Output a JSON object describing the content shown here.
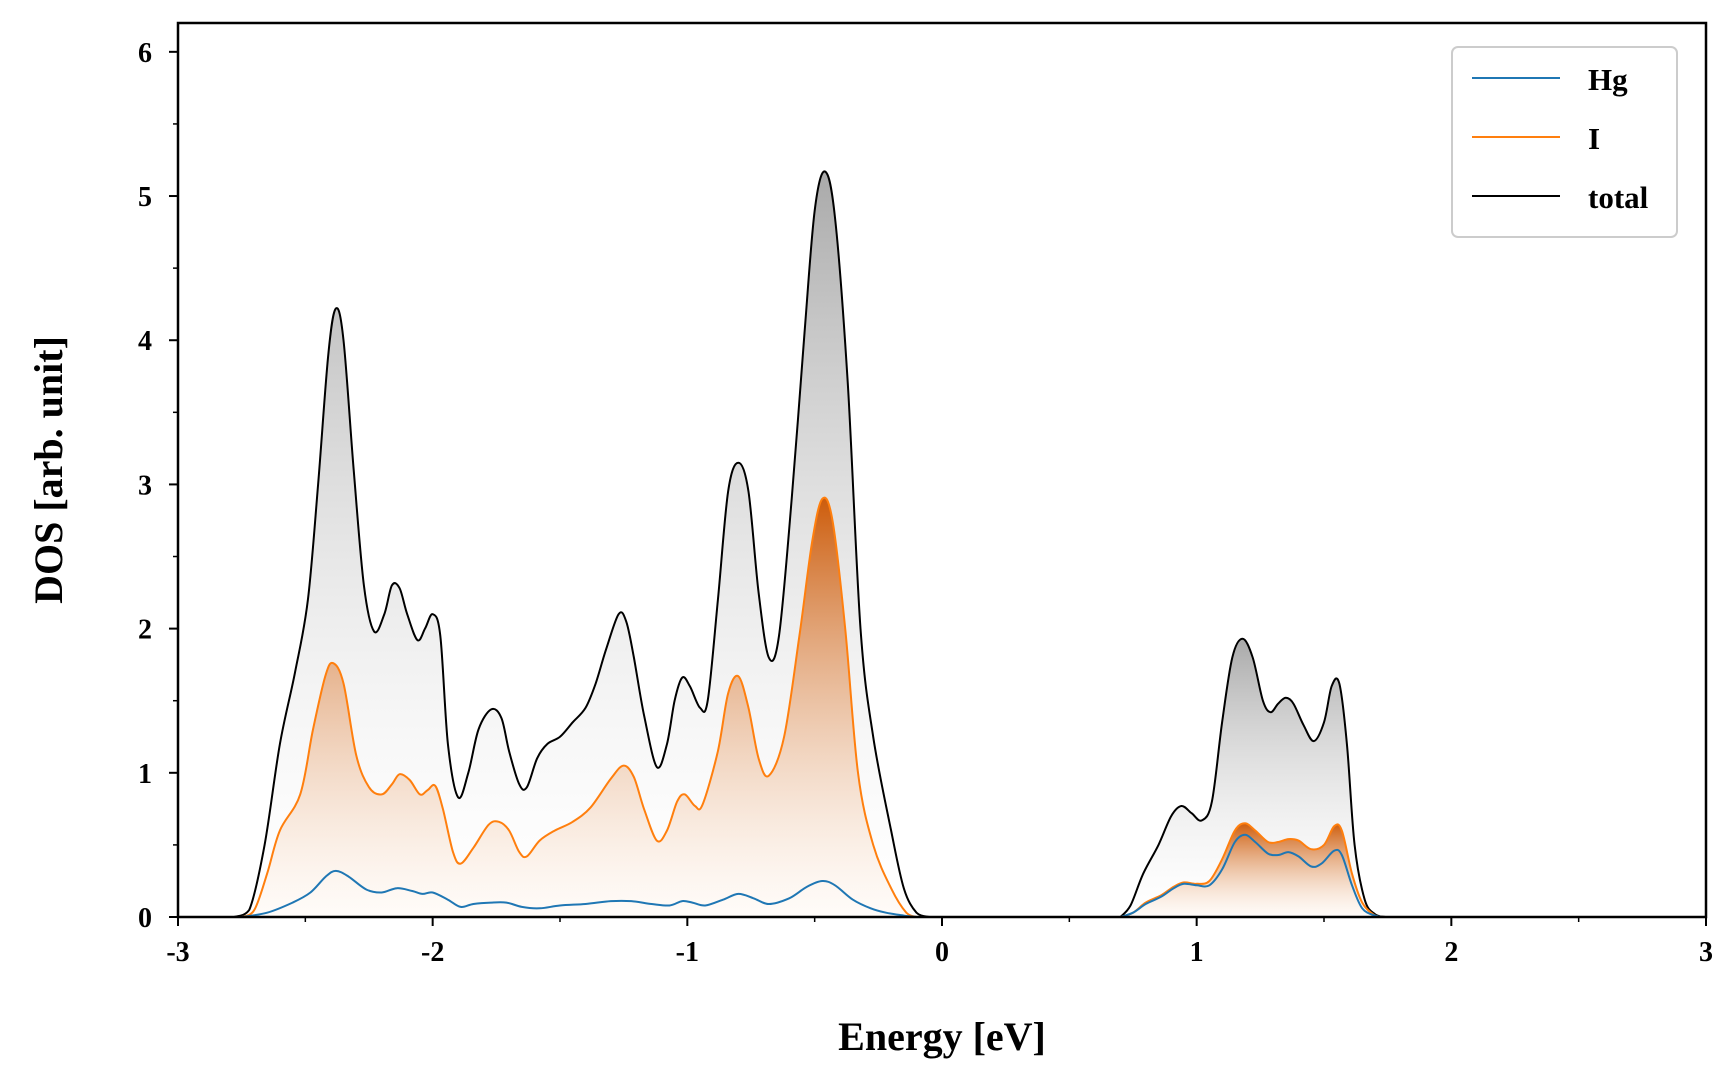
{
  "chart_data": {
    "type": "area",
    "title": "",
    "xlabel": "Energy [eV]",
    "ylabel": "DOS [arb. unit]",
    "xlim": [
      -3,
      3
    ],
    "ylim": [
      0,
      6.2
    ],
    "x_ticks": [
      -3,
      -2,
      -1,
      0,
      1,
      2,
      3
    ],
    "x_tick_labels": [
      "-3",
      "-2",
      "-1",
      "0",
      "1",
      "2",
      "3"
    ],
    "y_ticks": [
      0,
      1,
      2,
      3,
      4,
      5,
      6
    ],
    "y_tick_labels": [
      "0",
      "1",
      "2",
      "3",
      "4",
      "5",
      "6"
    ],
    "grid": false,
    "legend": {
      "position": "top-right",
      "entries": [
        "Hg",
        "I",
        "total"
      ]
    },
    "series": [
      {
        "name": "Hg",
        "color": "#1f77b4",
        "fill": false,
        "points": [
          [
            -2.75,
            0
          ],
          [
            -2.65,
            0.03
          ],
          [
            -2.55,
            0.1
          ],
          [
            -2.48,
            0.17
          ],
          [
            -2.42,
            0.28
          ],
          [
            -2.38,
            0.32
          ],
          [
            -2.33,
            0.28
          ],
          [
            -2.26,
            0.19
          ],
          [
            -2.2,
            0.17
          ],
          [
            -2.14,
            0.2
          ],
          [
            -2.08,
            0.18
          ],
          [
            -2.04,
            0.16
          ],
          [
            -2.0,
            0.17
          ],
          [
            -1.94,
            0.12
          ],
          [
            -1.89,
            0.07
          ],
          [
            -1.84,
            0.09
          ],
          [
            -1.77,
            0.1
          ],
          [
            -1.71,
            0.1
          ],
          [
            -1.65,
            0.07
          ],
          [
            -1.58,
            0.06
          ],
          [
            -1.5,
            0.08
          ],
          [
            -1.4,
            0.09
          ],
          [
            -1.3,
            0.11
          ],
          [
            -1.22,
            0.11
          ],
          [
            -1.14,
            0.09
          ],
          [
            -1.07,
            0.08
          ],
          [
            -1.02,
            0.11
          ],
          [
            -0.98,
            0.1
          ],
          [
            -0.93,
            0.08
          ],
          [
            -0.86,
            0.12
          ],
          [
            -0.8,
            0.16
          ],
          [
            -0.74,
            0.13
          ],
          [
            -0.68,
            0.09
          ],
          [
            -0.6,
            0.13
          ],
          [
            -0.53,
            0.21
          ],
          [
            -0.47,
            0.25
          ],
          [
            -0.42,
            0.22
          ],
          [
            -0.35,
            0.12
          ],
          [
            -0.28,
            0.06
          ],
          [
            -0.22,
            0.03
          ],
          [
            -0.15,
            0.01
          ],
          [
            -0.1,
            0
          ],
          [
            0.7,
            0
          ],
          [
            0.75,
            0.03
          ],
          [
            0.8,
            0.09
          ],
          [
            0.86,
            0.14
          ],
          [
            0.91,
            0.2
          ],
          [
            0.95,
            0.23
          ],
          [
            1.0,
            0.22
          ],
          [
            1.05,
            0.22
          ],
          [
            1.1,
            0.33
          ],
          [
            1.15,
            0.52
          ],
          [
            1.19,
            0.57
          ],
          [
            1.23,
            0.52
          ],
          [
            1.28,
            0.44
          ],
          [
            1.32,
            0.43
          ],
          [
            1.36,
            0.45
          ],
          [
            1.4,
            0.42
          ],
          [
            1.45,
            0.35
          ],
          [
            1.49,
            0.37
          ],
          [
            1.54,
            0.46
          ],
          [
            1.57,
            0.43
          ],
          [
            1.61,
            0.22
          ],
          [
            1.65,
            0.06
          ],
          [
            1.7,
            0.01
          ],
          [
            1.73,
            0
          ]
        ]
      },
      {
        "name": "I",
        "color": "#ff7f0e",
        "fill": true,
        "points": [
          [
            -2.75,
            0
          ],
          [
            -2.7,
            0.05
          ],
          [
            -2.65,
            0.3
          ],
          [
            -2.6,
            0.6
          ],
          [
            -2.52,
            0.85
          ],
          [
            -2.47,
            1.3
          ],
          [
            -2.42,
            1.68
          ],
          [
            -2.39,
            1.76
          ],
          [
            -2.35,
            1.62
          ],
          [
            -2.3,
            1.12
          ],
          [
            -2.25,
            0.9
          ],
          [
            -2.2,
            0.85
          ],
          [
            -2.16,
            0.92
          ],
          [
            -2.13,
            0.99
          ],
          [
            -2.09,
            0.95
          ],
          [
            -2.05,
            0.85
          ],
          [
            -2.02,
            0.88
          ],
          [
            -1.99,
            0.91
          ],
          [
            -1.96,
            0.75
          ],
          [
            -1.92,
            0.45
          ],
          [
            -1.89,
            0.37
          ],
          [
            -1.84,
            0.48
          ],
          [
            -1.78,
            0.64
          ],
          [
            -1.74,
            0.66
          ],
          [
            -1.7,
            0.6
          ],
          [
            -1.66,
            0.45
          ],
          [
            -1.63,
            0.42
          ],
          [
            -1.58,
            0.53
          ],
          [
            -1.52,
            0.6
          ],
          [
            -1.45,
            0.66
          ],
          [
            -1.38,
            0.76
          ],
          [
            -1.3,
            0.96
          ],
          [
            -1.25,
            1.05
          ],
          [
            -1.21,
            0.97
          ],
          [
            -1.17,
            0.75
          ],
          [
            -1.12,
            0.53
          ],
          [
            -1.08,
            0.6
          ],
          [
            -1.04,
            0.8
          ],
          [
            -1.01,
            0.85
          ],
          [
            -0.97,
            0.77
          ],
          [
            -0.94,
            0.78
          ],
          [
            -0.88,
            1.15
          ],
          [
            -0.84,
            1.55
          ],
          [
            -0.8,
            1.67
          ],
          [
            -0.76,
            1.45
          ],
          [
            -0.72,
            1.1
          ],
          [
            -0.68,
            0.98
          ],
          [
            -0.62,
            1.25
          ],
          [
            -0.56,
            1.95
          ],
          [
            -0.51,
            2.6
          ],
          [
            -0.47,
            2.9
          ],
          [
            -0.43,
            2.75
          ],
          [
            -0.38,
            2.0
          ],
          [
            -0.33,
            1.0
          ],
          [
            -0.27,
            0.5
          ],
          [
            -0.2,
            0.2
          ],
          [
            -0.14,
            0.03
          ],
          [
            -0.1,
            0
          ],
          [
            0.7,
            0
          ],
          [
            0.75,
            0.03
          ],
          [
            0.8,
            0.1
          ],
          [
            0.86,
            0.15
          ],
          [
            0.91,
            0.21
          ],
          [
            0.95,
            0.24
          ],
          [
            1.0,
            0.23
          ],
          [
            1.05,
            0.25
          ],
          [
            1.1,
            0.4
          ],
          [
            1.15,
            0.6
          ],
          [
            1.19,
            0.65
          ],
          [
            1.23,
            0.6
          ],
          [
            1.28,
            0.52
          ],
          [
            1.32,
            0.52
          ],
          [
            1.36,
            0.54
          ],
          [
            1.4,
            0.53
          ],
          [
            1.45,
            0.47
          ],
          [
            1.5,
            0.5
          ],
          [
            1.54,
            0.63
          ],
          [
            1.57,
            0.6
          ],
          [
            1.61,
            0.3
          ],
          [
            1.65,
            0.1
          ],
          [
            1.7,
            0.01
          ],
          [
            1.73,
            0
          ]
        ]
      },
      {
        "name": "total",
        "color": "#000000",
        "fill": true,
        "points": [
          [
            -2.78,
            0
          ],
          [
            -2.72,
            0.05
          ],
          [
            -2.66,
            0.5
          ],
          [
            -2.6,
            1.2
          ],
          [
            -2.54,
            1.7
          ],
          [
            -2.49,
            2.2
          ],
          [
            -2.45,
            3.0
          ],
          [
            -2.41,
            3.9
          ],
          [
            -2.38,
            4.22
          ],
          [
            -2.35,
            4.0
          ],
          [
            -2.31,
            3.1
          ],
          [
            -2.27,
            2.3
          ],
          [
            -2.23,
            1.98
          ],
          [
            -2.19,
            2.1
          ],
          [
            -2.16,
            2.3
          ],
          [
            -2.13,
            2.28
          ],
          [
            -2.1,
            2.1
          ],
          [
            -2.06,
            1.92
          ],
          [
            -2.03,
            2.0
          ],
          [
            -2.0,
            2.1
          ],
          [
            -1.97,
            1.95
          ],
          [
            -1.94,
            1.2
          ],
          [
            -1.9,
            0.83
          ],
          [
            -1.86,
            1.0
          ],
          [
            -1.82,
            1.3
          ],
          [
            -1.77,
            1.44
          ],
          [
            -1.73,
            1.38
          ],
          [
            -1.7,
            1.15
          ],
          [
            -1.66,
            0.92
          ],
          [
            -1.63,
            0.9
          ],
          [
            -1.59,
            1.1
          ],
          [
            -1.55,
            1.2
          ],
          [
            -1.5,
            1.25
          ],
          [
            -1.45,
            1.35
          ],
          [
            -1.4,
            1.45
          ],
          [
            -1.36,
            1.62
          ],
          [
            -1.32,
            1.85
          ],
          [
            -1.27,
            2.1
          ],
          [
            -1.24,
            2.05
          ],
          [
            -1.21,
            1.8
          ],
          [
            -1.17,
            1.4
          ],
          [
            -1.12,
            1.04
          ],
          [
            -1.08,
            1.2
          ],
          [
            -1.05,
            1.5
          ],
          [
            -1.02,
            1.66
          ],
          [
            -0.99,
            1.6
          ],
          [
            -0.95,
            1.45
          ],
          [
            -0.92,
            1.5
          ],
          [
            -0.88,
            2.2
          ],
          [
            -0.84,
            2.95
          ],
          [
            -0.8,
            3.15
          ],
          [
            -0.76,
            2.95
          ],
          [
            -0.72,
            2.25
          ],
          [
            -0.68,
            1.8
          ],
          [
            -0.64,
            1.95
          ],
          [
            -0.59,
            2.9
          ],
          [
            -0.54,
            4.05
          ],
          [
            -0.5,
            4.9
          ],
          [
            -0.46,
            5.17
          ],
          [
            -0.42,
            4.85
          ],
          [
            -0.37,
            3.7
          ],
          [
            -0.32,
            2.0
          ],
          [
            -0.27,
            1.25
          ],
          [
            -0.2,
            0.6
          ],
          [
            -0.15,
            0.2
          ],
          [
            -0.1,
            0.03
          ],
          [
            -0.05,
            0
          ],
          [
            0.7,
            0
          ],
          [
            0.74,
            0.08
          ],
          [
            0.79,
            0.3
          ],
          [
            0.85,
            0.5
          ],
          [
            0.9,
            0.7
          ],
          [
            0.94,
            0.77
          ],
          [
            0.98,
            0.72
          ],
          [
            1.02,
            0.67
          ],
          [
            1.06,
            0.8
          ],
          [
            1.1,
            1.35
          ],
          [
            1.14,
            1.8
          ],
          [
            1.18,
            1.93
          ],
          [
            1.22,
            1.8
          ],
          [
            1.26,
            1.5
          ],
          [
            1.29,
            1.42
          ],
          [
            1.32,
            1.48
          ],
          [
            1.35,
            1.52
          ],
          [
            1.38,
            1.48
          ],
          [
            1.42,
            1.33
          ],
          [
            1.46,
            1.22
          ],
          [
            1.5,
            1.35
          ],
          [
            1.53,
            1.6
          ],
          [
            1.56,
            1.62
          ],
          [
            1.59,
            1.2
          ],
          [
            1.62,
            0.5
          ],
          [
            1.66,
            0.12
          ],
          [
            1.7,
            0.02
          ],
          [
            1.74,
            0
          ]
        ]
      }
    ]
  }
}
